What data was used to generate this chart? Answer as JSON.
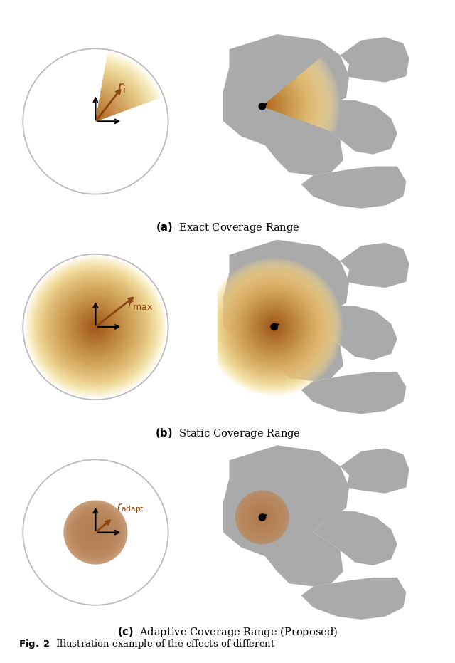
{
  "fig_width": 6.4,
  "fig_height": 9.31,
  "bg_color": "#ffffff",
  "title_a": "(\\textbf{a})  Exact Coverage Range",
  "title_b": "(\\textbf{b})  Static Coverage Range",
  "title_c": "(\\textbf{c})  Adaptive Coverage Range (Proposed)",
  "caption": "Fig. 2  Illustration example of the effects of different",
  "gray_shape": "#AAAAAA",
  "circle_edge": "#BBBBBB",
  "orange_dark": "#8B4513",
  "orange_med": "#CD853F",
  "orange_light": "#FFD580"
}
